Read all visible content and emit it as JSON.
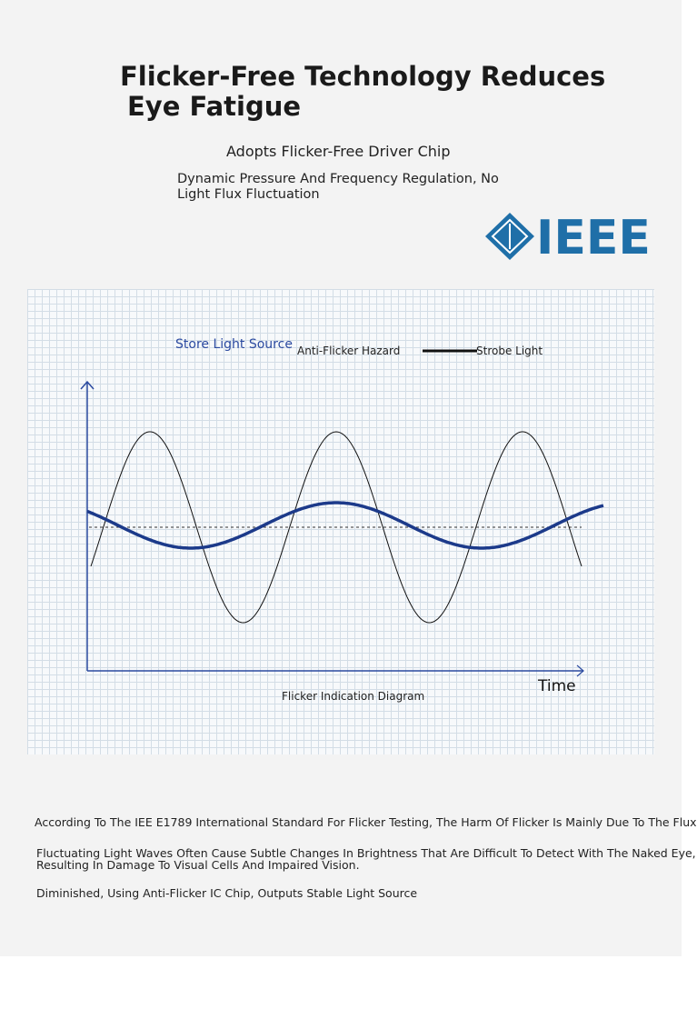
{
  "header": {
    "title_lines": [
      "Flicker-Free Technology Reduces",
      "Eye Fatigue"
    ],
    "subtitle": "Adopts Flicker-Free Driver Chip",
    "description_lines": [
      "Dynamic Pressure And Frequency Regulation, No",
      "Light Flux Fluctuation"
    ],
    "logo": "IEEE"
  },
  "diagram": {
    "legend_title": "Store Light Source",
    "anti_flicker_label": "Anti-Flicker Hazard",
    "strobe_label": "Strobe Light",
    "x_axis_label": "Time",
    "caption": "Flicker Indication Diagram"
  },
  "footer": {
    "lines": [
      "According To The IEE E1789 International Standard For Flicker Testing, The Harm Of Flicker Is Mainly Due To The Flux",
      "Fluctuating Light Waves Often Cause Subtle Changes In Brightness That Are Difficult To Detect With The Naked Eye,",
      "Resulting In Damage To Visual Cells And Impaired Vision.",
      "Diminished, Using Anti-Flicker IC Chip, Outputs Stable Light Source"
    ]
  }
}
